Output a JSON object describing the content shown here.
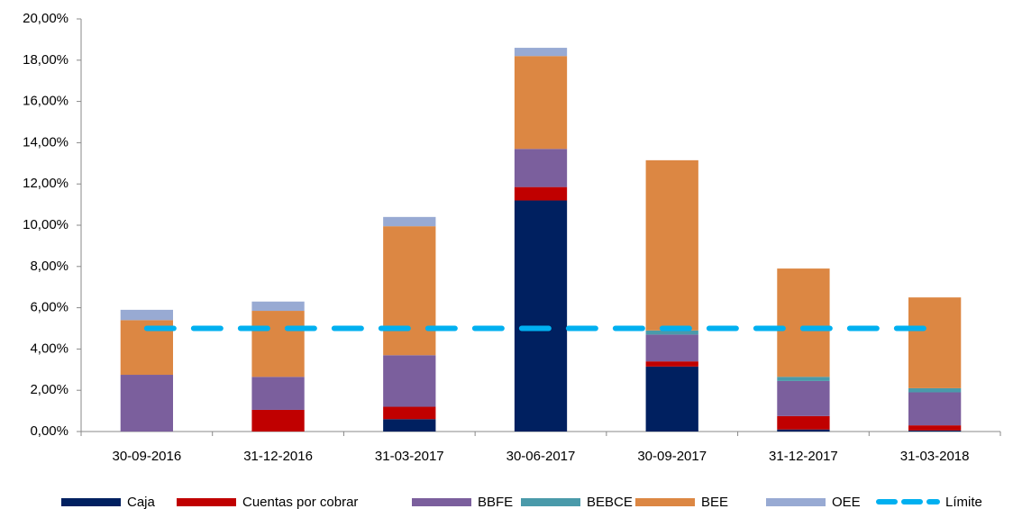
{
  "chart_data": {
    "type": "stacked-bar",
    "categories": [
      "30-09-2016",
      "31-12-2016",
      "31-03-2017",
      "30-06-2017",
      "30-09-2017",
      "31-12-2017",
      "31-03-2018"
    ],
    "series": [
      {
        "name": "Caja",
        "color": "#002060",
        "values": [
          0,
          0,
          0.6,
          11.2,
          3.15,
          0.1,
          0.05
        ]
      },
      {
        "name": "Cuentas por cobrar",
        "color": "#c00000",
        "values": [
          0,
          1.05,
          0.6,
          0.65,
          0.25,
          0.65,
          0.25
        ]
      },
      {
        "name": "BBFE",
        "color": "#7b5f9d",
        "values": [
          2.75,
          1.6,
          2.5,
          1.85,
          1.3,
          1.7,
          1.6
        ]
      },
      {
        "name": "BEBCE",
        "color": "#4a9aaa",
        "values": [
          0,
          0,
          0,
          0,
          0.2,
          0.2,
          0.2
        ]
      },
      {
        "name": "BEE",
        "color": "#dc8743",
        "values": [
          2.65,
          3.2,
          6.25,
          4.5,
          8.25,
          5.25,
          4.4
        ]
      },
      {
        "name": "OEE",
        "color": "#98aad3",
        "values": [
          0.5,
          0.45,
          0.45,
          0.4,
          0,
          0,
          0
        ]
      }
    ],
    "line": {
      "name": "Límite",
      "color": "#00b0f0",
      "values": [
        5,
        5,
        5,
        5,
        5,
        5,
        5
      ]
    },
    "ylim": [
      0,
      20
    ],
    "yticks": [
      {
        "value": 0,
        "label": "0,00%"
      },
      {
        "value": 2,
        "label": "2,00%"
      },
      {
        "value": 4,
        "label": "4,00%"
      },
      {
        "value": 6,
        "label": "6,00%"
      },
      {
        "value": 8,
        "label": "8,00%"
      },
      {
        "value": 10,
        "label": "10,00%"
      },
      {
        "value": 12,
        "label": "12,00%"
      },
      {
        "value": 14,
        "label": "14,00%"
      },
      {
        "value": 16,
        "label": "16,00%"
      },
      {
        "value": 18,
        "label": "18,00%"
      },
      {
        "value": 20,
        "label": "20,00%"
      }
    ]
  }
}
